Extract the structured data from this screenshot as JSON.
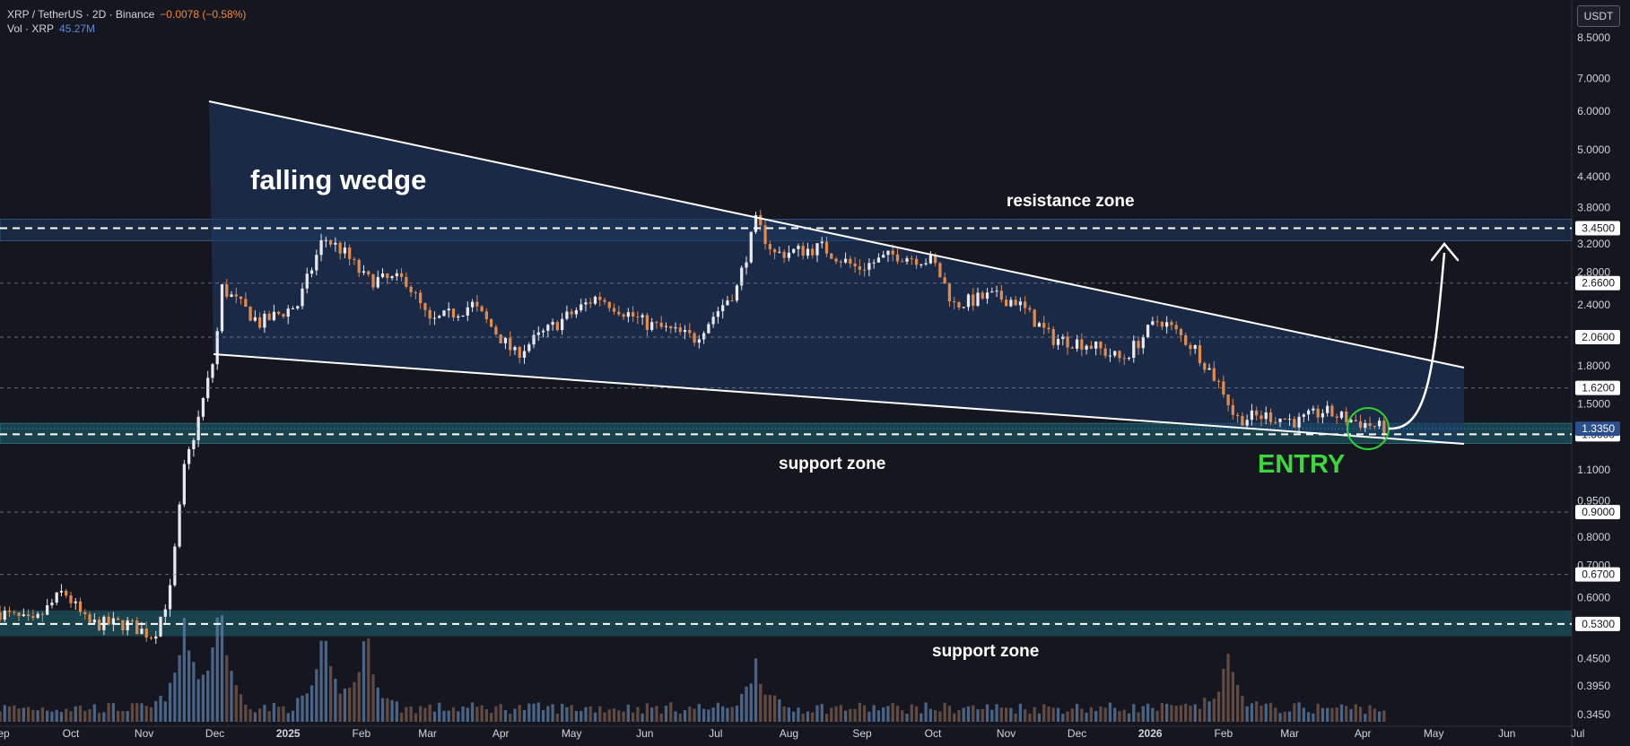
{
  "legend": {
    "symbol": "XRP / TetherUS · 2D · Binance",
    "change": "−0.0078 (−0.58%)",
    "vol_label": "Vol · XRP",
    "vol_value": "45.27M"
  },
  "currency": "USDT",
  "chart_data": {
    "type": "candlestick",
    "y_scale": "log",
    "ylim": [
      0.345,
      8.9
    ],
    "y_ticks": [
      "8.5000",
      "7.0000",
      "6.0000",
      "5.0000",
      "4.4000",
      "3.8000",
      "3.2000",
      "2.8000",
      "2.4000",
      "1.8000",
      "1.5000",
      "1.1000",
      "0.9500",
      "0.8000",
      "0.7000",
      "0.6000",
      "0.4500",
      "0.3950",
      "0.3450"
    ],
    "y_tick_values": [
      8.5,
      7.0,
      6.0,
      5.0,
      4.4,
      3.8,
      3.2,
      2.8,
      2.4,
      1.8,
      1.5,
      1.1,
      0.95,
      0.8,
      0.7,
      0.6,
      0.45,
      0.395,
      0.345
    ],
    "price_tags": [
      "3.4500",
      "2.6600",
      "2.0600",
      "1.6200",
      "1.3000",
      "0.9000",
      "0.6700",
      "0.5300"
    ],
    "price_tag_values": [
      3.45,
      2.66,
      2.06,
      1.62,
      1.3,
      0.9,
      0.67,
      0.53
    ],
    "current_price": "1.3350",
    "current_price_value": 1.335,
    "x_ticks": [
      "Sep",
      "Oct",
      "Nov",
      "Dec",
      "2025",
      "Feb",
      "Mar",
      "Apr",
      "May",
      "Jun",
      "Jul",
      "Aug",
      "Sep",
      "Oct",
      "Nov",
      "Dec",
      "2026",
      "Feb",
      "Mar",
      "Apr",
      "May",
      "Jun",
      "Jul"
    ],
    "x_tick_dates": [
      "2024-09-01",
      "2024-10-01",
      "2024-11-01",
      "2024-12-01",
      "2025-01-01",
      "2025-02-01",
      "2025-03-01",
      "2025-04-01",
      "2025-05-01",
      "2025-06-01",
      "2025-07-01",
      "2025-08-01",
      "2025-09-01",
      "2025-10-01",
      "2025-11-01",
      "2025-12-01",
      "2026-01-01",
      "2026-02-01",
      "2026-03-01",
      "2026-04-01",
      "2026-05-01",
      "2026-06-01",
      "2026-07-01"
    ],
    "close_path": [
      [
        "2024-09-01",
        0.56
      ],
      [
        "2024-09-15",
        0.53
      ],
      [
        "2024-09-28",
        0.62
      ],
      [
        "2024-10-08",
        0.53
      ],
      [
        "2024-10-25",
        0.53
      ],
      [
        "2024-11-05",
        0.5
      ],
      [
        "2024-11-12",
        0.62
      ],
      [
        "2024-11-18",
        1.1
      ],
      [
        "2024-11-24",
        1.4
      ],
      [
        "2024-12-01",
        1.9
      ],
      [
        "2024-12-04",
        2.6
      ],
      [
        "2024-12-20",
        2.2
      ],
      [
        "2025-01-05",
        2.4
      ],
      [
        "2025-01-16",
        3.3
      ],
      [
        "2025-01-24",
        3.1
      ],
      [
        "2025-02-03",
        2.7
      ],
      [
        "2025-02-20",
        2.7
      ],
      [
        "2025-03-02",
        2.2
      ],
      [
        "2025-03-20",
        2.4
      ],
      [
        "2025-04-07",
        1.9
      ],
      [
        "2025-04-25",
        2.2
      ],
      [
        "2025-05-12",
        2.5
      ],
      [
        "2025-06-01",
        2.2
      ],
      [
        "2025-06-22",
        2.05
      ],
      [
        "2025-07-10",
        2.6
      ],
      [
        "2025-07-18",
        3.55
      ],
      [
        "2025-07-26",
        3.05
      ],
      [
        "2025-08-15",
        3.15
      ],
      [
        "2025-08-30",
        2.85
      ],
      [
        "2025-09-15",
        3.05
      ],
      [
        "2025-10-01",
        2.95
      ],
      [
        "2025-10-10",
        2.4
      ],
      [
        "2025-10-25",
        2.5
      ],
      [
        "2025-11-05",
        2.45
      ],
      [
        "2025-11-20",
        2.05
      ],
      [
        "2025-12-05",
        2.0
      ],
      [
        "2025-12-20",
        1.85
      ],
      [
        "2026-01-05",
        2.25
      ],
      [
        "2026-01-20",
        1.95
      ],
      [
        "2026-02-01",
        1.6
      ],
      [
        "2026-02-06",
        1.4
      ],
      [
        "2026-02-20",
        1.42
      ],
      [
        "2026-03-05",
        1.38
      ],
      [
        "2026-03-15",
        1.45
      ],
      [
        "2026-03-25",
        1.4
      ],
      [
        "2026-04-10",
        1.335
      ]
    ],
    "volume_peaks": [
      [
        "2024-11-18",
        45
      ],
      [
        "2024-12-03",
        60
      ],
      [
        "2025-01-16",
        40
      ],
      [
        "2025-02-03",
        42
      ],
      [
        "2025-07-18",
        25
      ],
      [
        "2026-02-03",
        28
      ]
    ]
  },
  "annotations": {
    "pattern": "falling wedge",
    "resistance": "resistance zone",
    "support_upper": "support zone",
    "support_lower": "support zone",
    "entry": "ENTRY"
  }
}
